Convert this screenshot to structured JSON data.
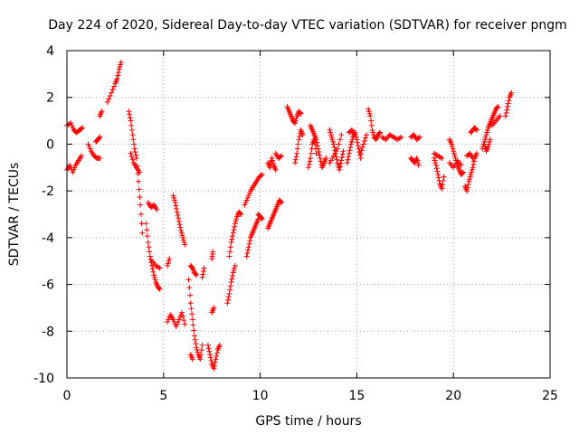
{
  "chart_data": {
    "type": "scatter",
    "title": "Day 224 of 2020, Sidereal Day-to-day VTEC variation (SDTVAR) for receiver pngm",
    "xlabel": "GPS time / hours",
    "ylabel": "SDTVAR / TECUs",
    "xlim": [
      0,
      25
    ],
    "ylim": [
      -10,
      4
    ],
    "x_ticks": [
      0,
      5,
      10,
      15,
      20,
      25
    ],
    "x_tick_labels": [
      "0",
      "5",
      "10",
      "15",
      "20",
      "25"
    ],
    "y_ticks": [
      -10,
      -8,
      -6,
      -4,
      -2,
      0,
      2,
      4
    ],
    "y_tick_labels": [
      "-10",
      "-8",
      "-6",
      "-4",
      "-2",
      "0",
      "2",
      "4"
    ],
    "grid": true,
    "marker": "+",
    "color": "#ff0000",
    "series": [
      {
        "name": "SDTVAR",
        "segments": [
          {
            "x": [
              0.0,
              0.2,
              0.35,
              0.5,
              0.65,
              0.8
            ],
            "y": [
              0.8,
              0.9,
              0.6,
              0.5,
              0.6,
              0.7
            ]
          },
          {
            "x": [
              0.0,
              0.15,
              0.3,
              0.45,
              0.6,
              0.75
            ],
            "y": [
              -1.1,
              -0.9,
              -1.2,
              -0.9,
              -0.7,
              -0.5
            ]
          },
          {
            "x": [
              1.1,
              1.25,
              1.4,
              1.55,
              1.7
            ],
            "y": [
              0.0,
              -0.3,
              -0.5,
              -0.6,
              -0.6
            ]
          },
          {
            "x": [
              1.5,
              1.6,
              1.7
            ],
            "y": [
              0.1,
              0.2,
              0.3
            ]
          },
          {
            "x": [
              1.7,
              1.8
            ],
            "y": [
              1.2,
              1.4
            ]
          },
          {
            "x": [
              2.1,
              2.3,
              2.5,
              2.6,
              2.7,
              2.8
            ],
            "y": [
              1.8,
              2.2,
              2.6,
              2.8,
              3.2,
              3.5
            ]
          },
          {
            "x": [
              3.2,
              3.3,
              3.4,
              3.5,
              3.6,
              3.7,
              3.8,
              3.9
            ],
            "y": [
              1.4,
              1.0,
              0.4,
              -0.2,
              -0.6,
              -1.6,
              -2.6,
              -3.8
            ]
          },
          {
            "x": [
              3.3,
              3.45,
              3.6,
              3.75
            ],
            "y": [
              -0.4,
              -0.8,
              -1.0,
              -1.2
            ]
          },
          {
            "x": [
              4.1,
              4.2,
              4.3,
              4.4,
              4.5,
              4.6,
              4.7,
              4.8
            ],
            "y": [
              -3.4,
              -4.2,
              -4.8,
              -5.2,
              -5.6,
              -5.9,
              -6.1,
              -6.2
            ]
          },
          {
            "x": [
              4.2,
              4.35,
              4.5,
              4.65
            ],
            "y": [
              -2.5,
              -2.7,
              -2.6,
              -2.8
            ]
          },
          {
            "x": [
              4.4,
              4.6,
              4.8
            ],
            "y": [
              -5.0,
              -5.2,
              -5.3
            ]
          },
          {
            "x": [
              5.2,
              5.35,
              5.5,
              5.65,
              5.8,
              5.95,
              6.1
            ],
            "y": [
              -7.6,
              -7.3,
              -7.5,
              -7.8,
              -7.5,
              -7.2,
              -7.7
            ]
          },
          {
            "x": [
              5.5,
              5.6,
              5.7,
              5.8,
              5.9,
              6.0,
              6.1
            ],
            "y": [
              -2.2,
              -2.5,
              -2.9,
              -3.3,
              -3.7,
              -4.0,
              -4.3
            ]
          },
          {
            "x": [
              5.2,
              5.3
            ],
            "y": [
              -5.2,
              -4.9
            ]
          },
          {
            "x": [
              6.3,
              6.4,
              6.5,
              6.6,
              6.7,
              6.8,
              6.9,
              7.0
            ],
            "y": [
              -5.8,
              -6.8,
              -7.5,
              -8.2,
              -8.7,
              -9.0,
              -9.2,
              -8.6
            ]
          },
          {
            "x": [
              6.4,
              6.5,
              6.6,
              6.7
            ],
            "y": [
              -5.2,
              -5.3,
              -5.5,
              -5.6
            ]
          },
          {
            "x": [
              6.4,
              6.5
            ],
            "y": [
              -9.0,
              -9.2
            ]
          },
          {
            "x": [
              7.0,
              7.1
            ],
            "y": [
              -5.7,
              -5.3
            ]
          },
          {
            "x": [
              7.3,
              7.4,
              7.5,
              7.6,
              7.7,
              7.8,
              7.9
            ],
            "y": [
              -8.6,
              -9.0,
              -9.4,
              -9.6,
              -9.2,
              -8.8,
              -8.6
            ]
          },
          {
            "x": [
              7.5,
              7.6
            ],
            "y": [
              -7.2,
              -7.0
            ]
          },
          {
            "x": [
              7.5,
              7.55
            ],
            "y": [
              -4.9,
              -4.6
            ]
          },
          {
            "x": [
              8.3,
              8.4,
              8.5,
              8.6,
              8.7
            ],
            "y": [
              -6.8,
              -6.4,
              -5.9,
              -5.5,
              -5.2
            ]
          },
          {
            "x": [
              8.4,
              8.5,
              8.6,
              8.7,
              8.8,
              8.9,
              9.0
            ],
            "y": [
              -4.8,
              -4.2,
              -3.8,
              -3.4,
              -3.1,
              -2.9,
              -3.0
            ]
          },
          {
            "x": [
              9.2,
              9.35,
              9.5,
              9.65,
              9.8,
              9.95,
              10.1
            ],
            "y": [
              -2.6,
              -2.3,
              -2.0,
              -1.8,
              -1.6,
              -1.4,
              -1.3
            ]
          },
          {
            "x": [
              9.3,
              9.4,
              9.5,
              9.6,
              9.7,
              9.8,
              9.9
            ],
            "y": [
              -4.8,
              -4.4,
              -4.0,
              -3.8,
              -3.6,
              -3.4,
              -3.2
            ]
          },
          {
            "x": [
              9.9,
              10.0,
              10.1
            ],
            "y": [
              -3.0,
              -3.1,
              -3.2
            ]
          },
          {
            "x": [
              10.4,
              10.5,
              10.6,
              10.7,
              10.8,
              10.9,
              11.0,
              11.1
            ],
            "y": [
              -3.6,
              -3.4,
              -3.2,
              -3.0,
              -2.8,
              -2.6,
              -2.4,
              -2.5
            ]
          },
          {
            "x": [
              10.4,
              10.5,
              10.6,
              10.7,
              10.8
            ],
            "y": [
              -0.8,
              -1.0,
              -0.6,
              -0.9,
              -1.1
            ]
          },
          {
            "x": [
              10.8,
              10.95,
              11.1
            ],
            "y": [
              -0.4,
              -0.6,
              -0.5
            ]
          },
          {
            "x": [
              11.4,
              11.5,
              11.6,
              11.7,
              11.8,
              11.9,
              12.0,
              12.1
            ],
            "y": [
              1.6,
              1.4,
              1.2,
              1.0,
              0.9,
              1.2,
              1.4,
              1.3
            ]
          },
          {
            "x": [
              11.8,
              11.9,
              12.0,
              12.1,
              12.2
            ],
            "y": [
              -0.8,
              -0.4,
              0.2,
              0.6,
              0.4
            ]
          },
          {
            "x": [
              12.6,
              12.7,
              12.8,
              12.9,
              13.0,
              13.1,
              13.2,
              13.3,
              13.4
            ],
            "y": [
              0.8,
              0.6,
              0.4,
              0.2,
              -0.2,
              -0.6,
              -1.0,
              -0.8,
              -0.6
            ]
          },
          {
            "x": [
              12.5,
              12.6,
              12.7,
              12.8,
              12.9
            ],
            "y": [
              -1.0,
              -0.6,
              0.0,
              0.2,
              -0.4
            ]
          },
          {
            "x": [
              13.6,
              13.7,
              13.8,
              13.9,
              14.0,
              14.1,
              14.2,
              14.3
            ],
            "y": [
              0.6,
              0.3,
              0.0,
              -0.4,
              -0.8,
              -1.1,
              -0.7,
              -0.3
            ]
          },
          {
            "x": [
              13.6,
              13.8,
              14.0,
              14.2
            ],
            "y": [
              -0.8,
              -0.5,
              -0.2,
              0.4
            ]
          },
          {
            "x": [
              14.5,
              14.6,
              14.7,
              14.8,
              14.9,
              15.0,
              15.1,
              15.2
            ],
            "y": [
              -0.8,
              -0.4,
              0.0,
              0.3,
              0.5,
              0.2,
              -0.2,
              -0.6
            ]
          },
          {
            "x": [
              14.6,
              14.75,
              14.9
            ],
            "y": [
              0.5,
              0.6,
              0.4
            ]
          },
          {
            "x": [
              15.2,
              15.35,
              15.5
            ],
            "y": [
              -0.4,
              0.0,
              0.4
            ]
          },
          {
            "x": [
              15.6,
              15.7,
              15.8,
              15.9,
              16.0,
              16.1,
              16.2
            ],
            "y": [
              1.5,
              1.2,
              0.6,
              0.3,
              0.2,
              0.4,
              0.5
            ]
          },
          {
            "x": [
              16.3,
              16.5,
              16.7,
              16.9,
              17.1,
              17.3
            ],
            "y": [
              0.3,
              0.2,
              0.4,
              0.3,
              0.2,
              0.3
            ]
          },
          {
            "x": [
              17.8,
              17.95,
              18.1,
              18.25
            ],
            "y": [
              0.3,
              0.4,
              0.2,
              0.3
            ]
          },
          {
            "x": [
              17.8,
              17.9,
              18.0,
              18.1,
              18.2
            ],
            "y": [
              -0.6,
              -0.7,
              -0.8,
              -0.6,
              -0.9
            ]
          },
          {
            "x": [
              19.0,
              19.1,
              19.2,
              19.3,
              19.4,
              19.5
            ],
            "y": [
              -0.6,
              -0.9,
              -1.3,
              -1.7,
              -1.9,
              -1.4
            ]
          },
          {
            "x": [
              19.0,
              19.2,
              19.4
            ],
            "y": [
              -0.4,
              -0.5,
              -0.6
            ]
          },
          {
            "x": [
              19.8,
              19.9,
              20.0,
              20.1,
              20.2,
              20.3,
              20.4,
              20.5
            ],
            "y": [
              0.2,
              0.0,
              -0.3,
              -0.6,
              -0.9,
              -1.1,
              -1.3,
              -1.2
            ]
          },
          {
            "x": [
              19.8,
              20.0,
              20.2,
              20.4
            ],
            "y": [
              -0.8,
              -1.0,
              -0.7,
              -0.9
            ]
          },
          {
            "x": [
              20.6,
              20.7,
              20.8,
              20.9,
              21.0,
              21.1,
              21.2
            ],
            "y": [
              -1.8,
              -2.0,
              -1.6,
              -1.3,
              -1.0,
              -0.6,
              -0.4
            ]
          },
          {
            "x": [
              20.7,
              20.85,
              21.0
            ],
            "y": [
              -0.5,
              -0.4,
              -0.6
            ]
          },
          {
            "x": [
              20.9,
              21.0,
              21.1,
              21.2
            ],
            "y": [
              0.5,
              0.6,
              0.7,
              0.6
            ]
          },
          {
            "x": [
              21.5,
              21.6,
              21.7,
              21.8,
              21.9,
              22.0,
              22.1,
              22.2,
              22.3
            ],
            "y": [
              -0.2,
              0.1,
              0.4,
              0.7,
              0.9,
              1.1,
              1.3,
              1.5,
              1.6
            ]
          },
          {
            "x": [
              21.6,
              21.7,
              21.8,
              21.9
            ],
            "y": [
              0.0,
              -0.3,
              -0.1,
              0.2
            ]
          },
          {
            "x": [
              22.0,
              22.2,
              22.4
            ],
            "y": [
              0.8,
              1.0,
              1.2
            ]
          },
          {
            "x": [
              22.7,
              22.8,
              22.9,
              23.0
            ],
            "y": [
              1.2,
              1.6,
              2.0,
              2.2
            ]
          }
        ]
      }
    ]
  }
}
